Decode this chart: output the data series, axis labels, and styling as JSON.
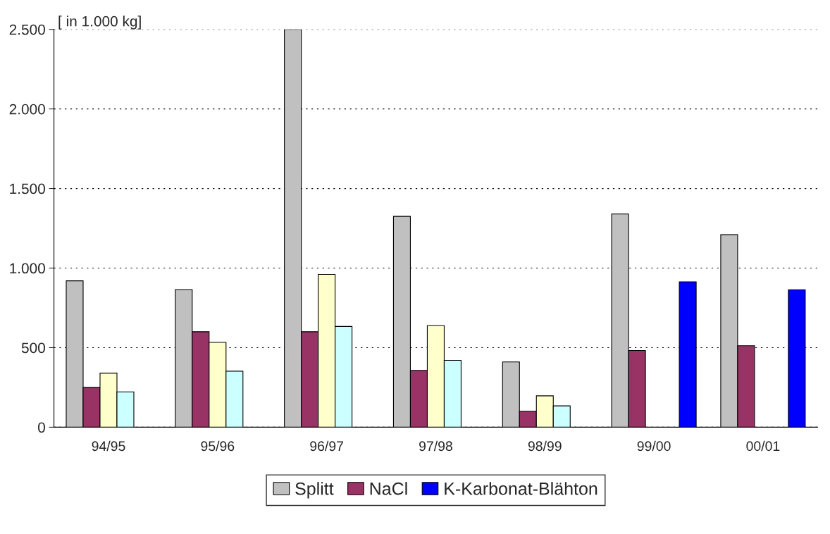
{
  "chart_data": {
    "type": "bar",
    "ylabel": "[ in 1.000 kg]",
    "categories": [
      "94/95",
      "95/96",
      "96/97",
      "97/98",
      "98/99",
      "99/00",
      "00/01"
    ],
    "series": [
      {
        "name": "Splitt",
        "color": "#c0c0c0",
        "values": [
          920,
          865,
          2500,
          1325,
          410,
          1340,
          1210
        ]
      },
      {
        "name": "NaCl",
        "color": "#993366",
        "values": [
          250,
          600,
          600,
          357,
          100,
          482,
          512
        ]
      },
      {
        "color": "#ffffcc",
        "values": [
          340,
          533,
          960,
          638,
          197,
          null,
          null
        ]
      },
      {
        "color": "#ccffff",
        "values": [
          222,
          352,
          633,
          420,
          134,
          null,
          null
        ]
      },
      {
        "name": "K-Karbonat-Blähton",
        "color": "#0000ff",
        "values": [
          null,
          null,
          null,
          null,
          null,
          914,
          864
        ]
      }
    ],
    "ylim": [
      0,
      2500
    ],
    "yticks": [
      {
        "value": 0,
        "label": "0"
      },
      {
        "value": 500,
        "label": "500"
      },
      {
        "value": 1000,
        "label": "1.000"
      },
      {
        "value": 1500,
        "label": "1.500"
      },
      {
        "value": 2000,
        "label": "2.000"
      },
      {
        "value": 2500,
        "label": "2.500"
      }
    ],
    "grid": "y",
    "legend": "bottom"
  }
}
